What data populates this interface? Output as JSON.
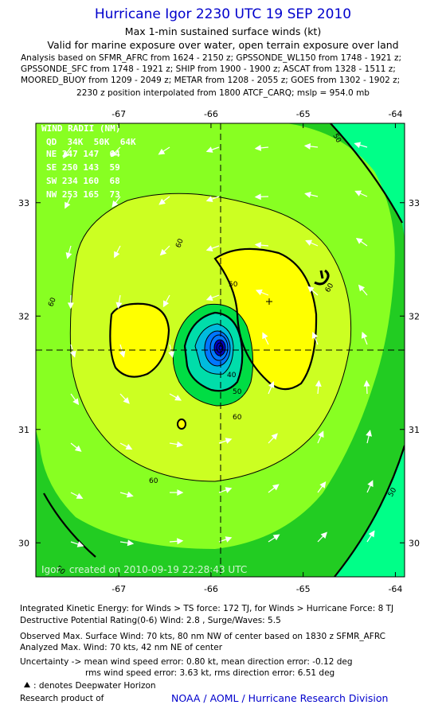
{
  "header": {
    "title": "Hurricane Igor 2230 UTC 19 SEP 2010",
    "subtitle": "Max 1-min sustained surface winds (kt)",
    "validity": "Valid for marine exposure over water, open terrain exposure over land",
    "analysis_lines": [
      "Analysis based on SFMR_AFRC from 1624 - 2150 z; GPSSONDE_WL150 from 1748 - 1921 z;",
      "GPSSONDE_SFC from 1748 - 1921 z; SHIP from 1900 - 1900 z; ASCAT from 1328 - 1511 z;",
      "MOORED_BUOY from 1209 - 2049 z; METAR from 1208 - 2055 z; GOES from 1302 - 1902 z;",
      "2230 z position interpolated from 1800 ATCF_CARQ; mslp = 954.0 mb"
    ]
  },
  "chart_data": {
    "type": "contour",
    "title": "Hurricane Igor 2230 UTC 19 SEP 2010",
    "xlabel": "",
    "ylabel": "",
    "x_ticks": [
      "-67",
      "-66",
      "-65",
      "-64"
    ],
    "y_ticks": [
      "33",
      "32",
      "31",
      "30"
    ],
    "xlim": [
      -67.9,
      -63.9
    ],
    "ylim": [
      29.7,
      33.7
    ],
    "center": {
      "lon": -65.9,
      "lat": 31.7
    },
    "max_marker": {
      "lon": -65.4,
      "lat": 32.13
    },
    "contour_levels_labeled": [
      "60",
      "60",
      "60",
      "60",
      "50",
      "40",
      "50",
      "60"
    ],
    "fill_colors": {
      "lt_34": "#00ff88",
      "34_50": "#22cc22",
      "50_64": "#88ff22",
      "64_80": "#ccff22",
      "ge_80": "#ffff00",
      "core_1": "#00dd44",
      "core_2": "#00ddaa",
      "core_3": "#00bbdd",
      "core_4": "#0077ff",
      "eye": "#0000cc"
    },
    "wind_radii_table": {
      "header": "WIND RADII (NM)",
      "columns": "QD  34K  50K  64K",
      "rows": [
        "NE 247 147  64",
        "SE 250 143  59",
        "SW 234 160  68",
        "NW 253 165  73"
      ]
    },
    "annotation": "Igor   created on 2010-09-19 22:28:43 UTC"
  },
  "footer": {
    "ike": "Integrated Kinetic Energy:  for Winds > TS force: 172 TJ,  for Winds > Hurricane Force: 8 TJ",
    "dpr": "Destructive Potential Rating(0-6)   Wind: 2.8 , Surge/Waves: 5.5",
    "observed": "Observed Max. Surface Wind: 70 kts, 80 nm NW of center based on 1830 z SFMR_AFRC",
    "analyzed": "Analyzed Max. Wind: 70 kts, 42 nm NE of center",
    "uncertainty_1": "Uncertainty -> mean wind speed error: 0.80 kt,   mean direction error:  -0.12 deg",
    "uncertainty_2": "rms wind speed error: 3.63 kt,   rms direction error: 6.51 deg",
    "legend_note": ": denotes Deepwater Horizon",
    "credit_label": "Research product of",
    "credit_org": "NOAA / AOML / Hurricane Research Division"
  }
}
